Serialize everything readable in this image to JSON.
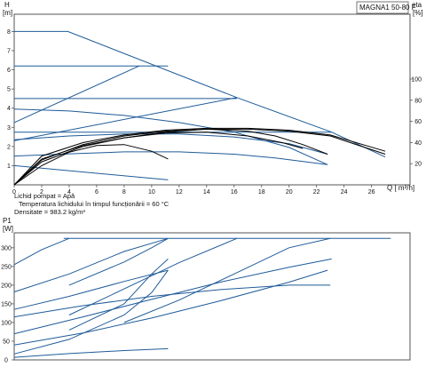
{
  "chart_data": [
    {
      "type": "line",
      "title": "MAGNA1 50-80 F",
      "ylabel": "H",
      "ylabel_unit": "[m]",
      "y2label": "eta",
      "y2label_unit": "[%]",
      "xlabel": "Q [ m³/h]",
      "xlim": [
        0,
        28.8
      ],
      "ylim": [
        0,
        8.9
      ],
      "y2lim": [
        0,
        100
      ],
      "x_ticks": [
        0,
        2,
        4,
        6,
        8,
        10,
        12,
        14,
        16,
        18,
        20,
        22,
        24,
        26
      ],
      "y_ticks": [
        1,
        2,
        3,
        4,
        5,
        6,
        7,
        8
      ],
      "y2_ticks": [
        20,
        40,
        60,
        80,
        100
      ],
      "grid": false,
      "pump_curves": [
        {
          "name": "curve-1",
          "color": "#1f5b99",
          "x": [
            0,
            11.2
          ],
          "y": [
            1.0,
            0.26
          ]
        },
        {
          "name": "curve-2",
          "color": "#1f5b99",
          "x": [
            0,
            4,
            8,
            12,
            16,
            19,
            22.8
          ],
          "y": [
            1.5,
            1.62,
            1.72,
            1.72,
            1.6,
            1.4,
            1.05
          ]
        },
        {
          "name": "curve-3",
          "color": "#1f5b99",
          "x": [
            0,
            4,
            8,
            12,
            16,
            20,
            22.8
          ],
          "y": [
            2.35,
            2.55,
            2.65,
            2.65,
            2.5,
            2.15,
            1.6
          ]
        },
        {
          "name": "curve-4",
          "color": "#1f5b99",
          "x": [
            0,
            4,
            8,
            12,
            16,
            20,
            22.8
          ],
          "y": [
            3.95,
            3.85,
            3.62,
            3.25,
            2.75,
            1.95,
            1.05
          ]
        },
        {
          "name": "max-curve",
          "color": "#1f5b99",
          "x": [
            0,
            3.9,
            16.2,
            23.1,
            27
          ],
          "y": [
            8.0,
            8.0,
            4.55,
            2.75,
            1.45
          ]
        },
        {
          "name": "prop-low",
          "color": "#1f5b99",
          "x": [
            0,
            16.2
          ],
          "y": [
            2.3,
            4.55
          ]
        },
        {
          "name": "prop-high",
          "color": "#1f5b99",
          "x": [
            0,
            9.1
          ],
          "y": [
            3.25,
            6.2
          ]
        },
        {
          "name": "const-upper",
          "color": "#1f5b99",
          "x": [
            0,
            11.2
          ],
          "y": [
            6.2,
            6.2
          ]
        },
        {
          "name": "const-mid",
          "color": "#1f5b99",
          "x": [
            0,
            16.2
          ],
          "y": [
            4.5,
            4.5
          ]
        },
        {
          "name": "const-low",
          "color": "#1f5b99",
          "x": [
            0,
            23.1
          ],
          "y": [
            2.75,
            2.75
          ]
        }
      ],
      "efficiency_curves": [
        {
          "name": "eta-1",
          "x": [
            0,
            2,
            5,
            8,
            11,
            14,
            17,
            20,
            23,
            27
          ],
          "y": [
            0,
            1.5,
            2.2,
            2.6,
            2.85,
            2.95,
            2.95,
            2.85,
            2.6,
            1.75
          ]
        },
        {
          "name": "eta-2",
          "x": [
            0,
            2,
            5,
            8,
            11,
            14,
            17,
            20,
            23,
            27
          ],
          "y": [
            0,
            1.35,
            2.05,
            2.45,
            2.75,
            2.9,
            2.9,
            2.8,
            2.55,
            1.6
          ]
        },
        {
          "name": "eta-3",
          "x": [
            0,
            2,
            5,
            8,
            11,
            14,
            17,
            19,
            21,
            22.8
          ],
          "y": [
            0,
            1.3,
            2.1,
            2.55,
            2.8,
            2.9,
            2.8,
            2.55,
            2.1,
            1.6
          ]
        },
        {
          "name": "eta-4",
          "x": [
            0,
            2,
            5,
            8,
            11,
            14,
            17,
            19.5,
            21
          ],
          "y": [
            0,
            1.2,
            2.0,
            2.45,
            2.7,
            2.75,
            2.55,
            2.2,
            1.9
          ]
        },
        {
          "name": "eta-5",
          "x": [
            0,
            2,
            4,
            6,
            8,
            10,
            11.2
          ],
          "y": [
            0,
            1.0,
            1.7,
            2.05,
            2.1,
            1.75,
            1.35
          ]
        }
      ]
    },
    {
      "type": "line",
      "ylabel": "P1",
      "ylabel_unit": "[W]",
      "xlim": [
        0,
        28.8
      ],
      "ylim": [
        0,
        340
      ],
      "y_ticks": [
        0,
        50,
        100,
        150,
        200,
        250,
        300
      ],
      "grid": false,
      "power_curves": [
        {
          "name": "p-1",
          "x": [
            0,
            4,
            8,
            11.2
          ],
          "y": [
            7,
            17,
            25,
            30
          ]
        },
        {
          "name": "p-2",
          "x": [
            0,
            5,
            10,
            15,
            20,
            22.8
          ],
          "y": [
            40,
            72,
            112,
            158,
            208,
            240
          ]
        },
        {
          "name": "p-3",
          "x": [
            0,
            5,
            10,
            15,
            20,
            23.1
          ],
          "y": [
            70,
            115,
            162,
            208,
            248,
            270
          ]
        },
        {
          "name": "p-4",
          "x": [
            0,
            5,
            10,
            15,
            20,
            23
          ],
          "y": [
            115,
            145,
            170,
            188,
            200,
            200
          ]
        },
        {
          "name": "p-5",
          "x": [
            0,
            4,
            8,
            11.2
          ],
          "y": [
            135,
            170,
            210,
            240
          ]
        },
        {
          "name": "rise-a",
          "x": [
            0,
            4,
            8,
            10,
            11.2
          ],
          "y": [
            16,
            55,
            120,
            180,
            240
          ]
        },
        {
          "name": "rise-b",
          "x": [
            4,
            8,
            10,
            11.2
          ],
          "y": [
            80,
            150,
            230,
            270
          ]
        },
        {
          "name": "rise-c",
          "x": [
            4,
            8,
            12,
            16.2
          ],
          "y": [
            120,
            190,
            260,
            325
          ]
        },
        {
          "name": "rise-d",
          "x": [
            8,
            12,
            16,
            20,
            23
          ],
          "y": [
            100,
            160,
            230,
            300,
            325
          ]
        },
        {
          "name": "rise-e",
          "x": [
            0,
            4,
            8,
            11.2
          ],
          "y": [
            182,
            230,
            290,
            325
          ]
        },
        {
          "name": "rise-f",
          "x": [
            0,
            2,
            4
          ],
          "y": [
            255,
            295,
            325
          ]
        },
        {
          "name": "rise-g",
          "x": [
            4,
            8,
            10,
            11.2
          ],
          "y": [
            200,
            262,
            300,
            325
          ]
        },
        {
          "name": "max-p",
          "x": [
            3.6,
            27.4
          ],
          "y": [
            325,
            325
          ]
        }
      ]
    }
  ],
  "legend_text": {
    "liquid": "Lichid pompat = Apă",
    "temperature": "Temperatura lichidului în timpul funcționării = 60  °C",
    "density": "Densitate = 983.2  kg/m³"
  }
}
